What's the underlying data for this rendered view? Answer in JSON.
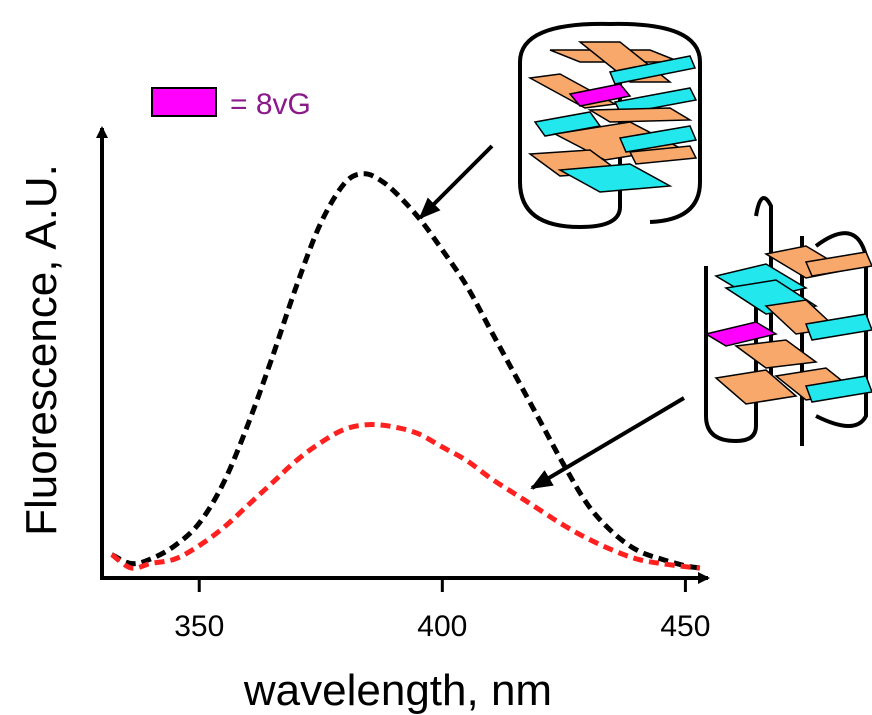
{
  "chart_data": {
    "type": "line",
    "title": "",
    "xlabel": "wavelength, nm",
    "ylabel": "Fluorescence, A.U.",
    "xlim": [
      330,
      453
    ],
    "ylim": [
      0,
      1.0
    ],
    "x_ticks": [
      350,
      400,
      450
    ],
    "x_tick_labels": [
      "350",
      "400",
      "450"
    ],
    "y_ticks_shown": false,
    "grid": false,
    "series": [
      {
        "color": "#000000",
        "style": "dashed",
        "x": [
          332,
          336,
          340,
          345,
          350,
          355,
          360,
          365,
          370,
          375,
          380,
          384,
          388,
          392,
          396,
          400,
          405,
          410,
          415,
          420,
          425,
          430,
          435,
          440,
          445,
          450,
          453
        ],
        "y": [
          0.03,
          0.01,
          0.02,
          0.05,
          0.1,
          0.19,
          0.32,
          0.47,
          0.63,
          0.77,
          0.86,
          0.88,
          0.86,
          0.82,
          0.77,
          0.71,
          0.63,
          0.53,
          0.43,
          0.33,
          0.23,
          0.14,
          0.08,
          0.04,
          0.02,
          0.005,
          0.0
        ]
      },
      {
        "color": "#ff2020",
        "style": "dashed",
        "x": [
          332,
          336,
          340,
          345,
          350,
          355,
          360,
          365,
          370,
          375,
          380,
          385,
          390,
          395,
          400,
          405,
          410,
          415,
          420,
          425,
          430,
          435,
          440,
          445,
          450,
          453
        ],
        "y": [
          0.03,
          0.0,
          0.01,
          0.02,
          0.05,
          0.09,
          0.14,
          0.19,
          0.24,
          0.28,
          0.31,
          0.32,
          0.315,
          0.3,
          0.27,
          0.24,
          0.2,
          0.165,
          0.13,
          0.095,
          0.065,
          0.04,
          0.02,
          0.01,
          0.003,
          0.0
        ]
      }
    ],
    "legend": {
      "label": "= 8vG",
      "swatch_color": "#ff00ff",
      "text_color": "#8b1a8b",
      "position": "top-left"
    },
    "annotations": [
      {
        "type": "arrow",
        "target_series": 0,
        "description_icon": "g-quadruplex-structure-icon"
      },
      {
        "type": "arrow",
        "target_series": 1,
        "description_icon": "g-quadruplex-structure-icon"
      }
    ]
  },
  "colors": {
    "orange_plane": "#f8a86a",
    "cyan_plane": "#22e8ee",
    "magenta_plane": "#ff00ff",
    "axis": "#000000"
  }
}
